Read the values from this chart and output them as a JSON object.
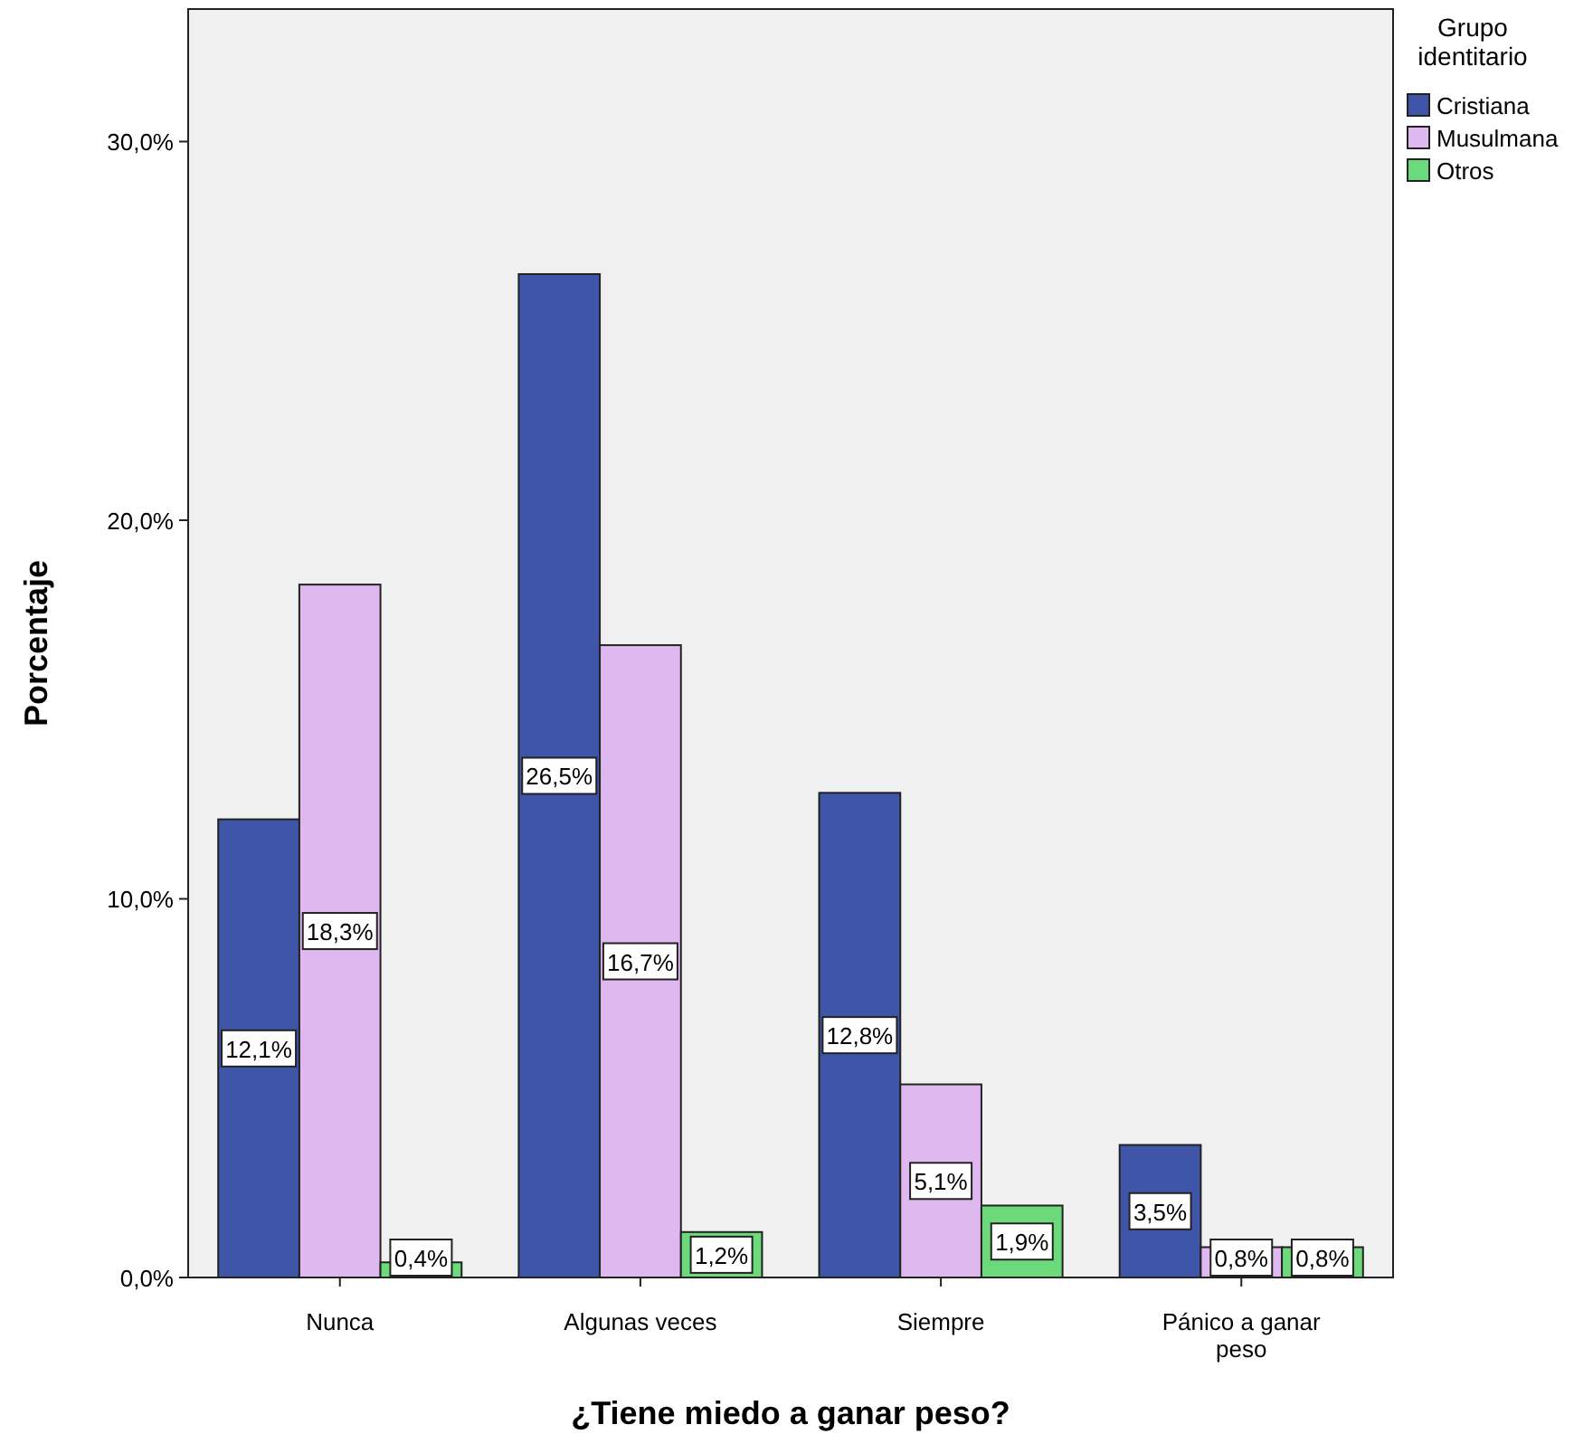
{
  "chart_data": {
    "type": "bar",
    "xlabel": "¿Tiene miedo a ganar peso?",
    "ylabel": "Porcentaje",
    "legend_title": "Grupo identitario",
    "legend": "right",
    "categories": [
      "Nunca",
      "Algunas veces",
      "Siempre",
      "Pánico a ganar peso"
    ],
    "series": [
      {
        "name": "Cristiana",
        "color": "#3f55a8",
        "values": [
          12.1,
          26.5,
          12.8,
          3.5
        ],
        "value_labels": [
          "12,1%",
          "26,5%",
          "12,8%",
          "3,5%"
        ]
      },
      {
        "name": "Musulmana",
        "color": "#e0b8f0",
        "values": [
          18.3,
          16.7,
          5.1,
          0.8
        ],
        "value_labels": [
          "18,3%",
          "16,7%",
          "5,1%",
          "0,8%"
        ]
      },
      {
        "name": "Otros",
        "color": "#6cd97a",
        "values": [
          0.4,
          1.2,
          1.9,
          0.8
        ],
        "value_labels": [
          "0,4%",
          "1,2%",
          "1,9%",
          "0,8%"
        ]
      }
    ],
    "ylim": [
      0,
      33.5
    ],
    "yticks": [
      {
        "value": 0,
        "label": "0,0%"
      },
      {
        "value": 10,
        "label": "10,0%"
      },
      {
        "value": 20,
        "label": "20,0%"
      },
      {
        "value": 30,
        "label": "30,0%"
      }
    ],
    "grid": false
  }
}
